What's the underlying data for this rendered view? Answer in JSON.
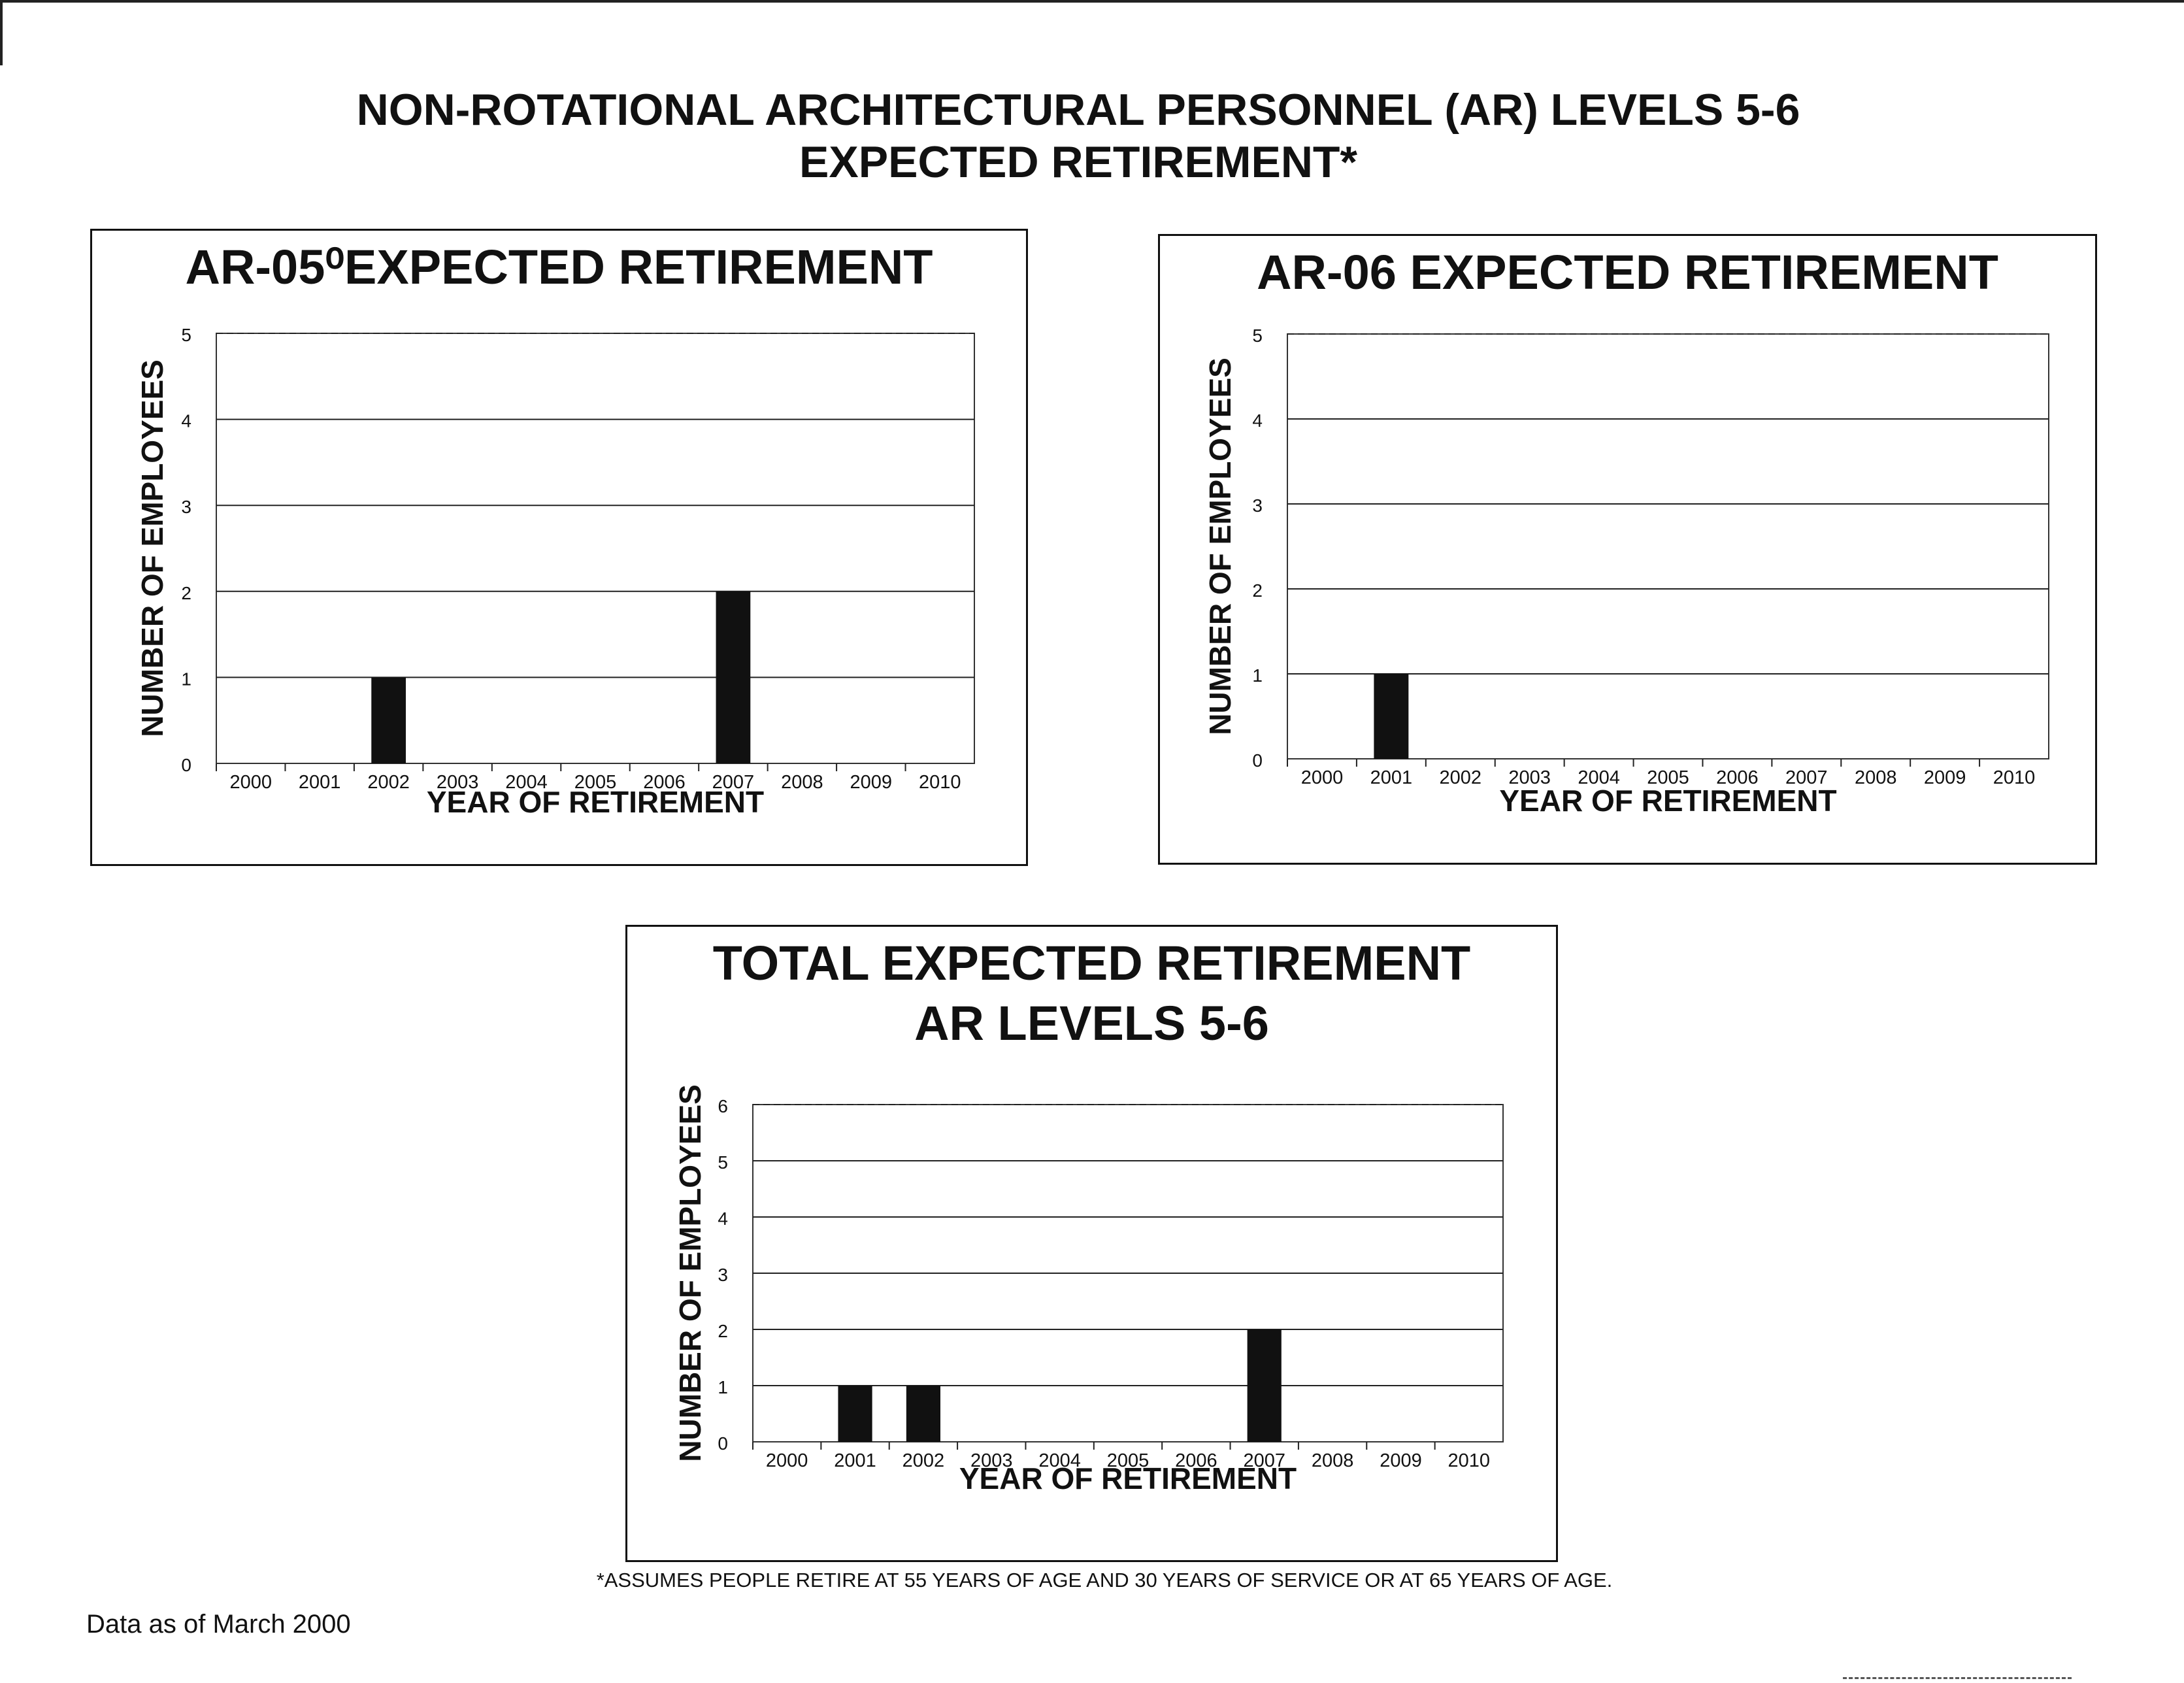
{
  "page": {
    "title_lines": [
      "NON-ROTATIONAL ARCHITECTURAL PERSONNEL (AR) LEVELS 5-6",
      "EXPECTED RETIREMENT*"
    ],
    "footnote": "*ASSUMES PEOPLE RETIRE AT 55 YEARS OF AGE AND 30 YEARS OF SERVICE OR AT 65 YEARS OF AGE.",
    "as_of": "Data as of March 2000"
  },
  "chart_data": [
    {
      "type": "bar",
      "title_lines": [
        "AR-05⁰EXPECTED RETIREMENT"
      ],
      "xlabel": "YEAR OF RETIREMENT",
      "ylabel": "NUMBER OF EMPLOYEES",
      "categories": [
        "2000",
        "2001",
        "2002",
        "2003",
        "2004",
        "2005",
        "2006",
        "2007",
        "2008",
        "2009",
        "2010"
      ],
      "values": [
        0,
        0,
        1,
        0,
        0,
        0,
        0,
        2,
        0,
        0,
        0
      ],
      "ylim": [
        0,
        5
      ],
      "yticks": [
        0,
        1,
        2,
        3,
        4,
        5
      ],
      "grid": true,
      "bar_color": "#111111"
    },
    {
      "type": "bar",
      "title_lines": [
        "AR-06 EXPECTED RETIREMENT"
      ],
      "xlabel": "YEAR OF RETIREMENT",
      "ylabel": "NUMBER OF EMPLOYEES",
      "categories": [
        "2000",
        "2001",
        "2002",
        "2003",
        "2004",
        "2005",
        "2006",
        "2007",
        "2008",
        "2009",
        "2010"
      ],
      "values": [
        0,
        1,
        0,
        0,
        0,
        0,
        0,
        0,
        0,
        0,
        0
      ],
      "ylim": [
        0,
        5
      ],
      "yticks": [
        0,
        1,
        2,
        3,
        4,
        5
      ],
      "grid": true,
      "bar_color": "#111111"
    },
    {
      "type": "bar",
      "title_lines": [
        "TOTAL EXPECTED RETIREMENT",
        "AR LEVELS 5-6"
      ],
      "xlabel": "YEAR OF RETIREMENT",
      "ylabel": "NUMBER OF EMPLOYEES",
      "categories": [
        "2000",
        "2001",
        "2002",
        "2003",
        "2004",
        "2005",
        "2006",
        "2007",
        "2008",
        "2009",
        "2010"
      ],
      "values": [
        0,
        1,
        1,
        0,
        0,
        0,
        0,
        2,
        0,
        0,
        0
      ],
      "ylim": [
        0,
        6
      ],
      "yticks": [
        0,
        1,
        2,
        3,
        4,
        5,
        6
      ],
      "grid": true,
      "bar_color": "#111111"
    }
  ]
}
